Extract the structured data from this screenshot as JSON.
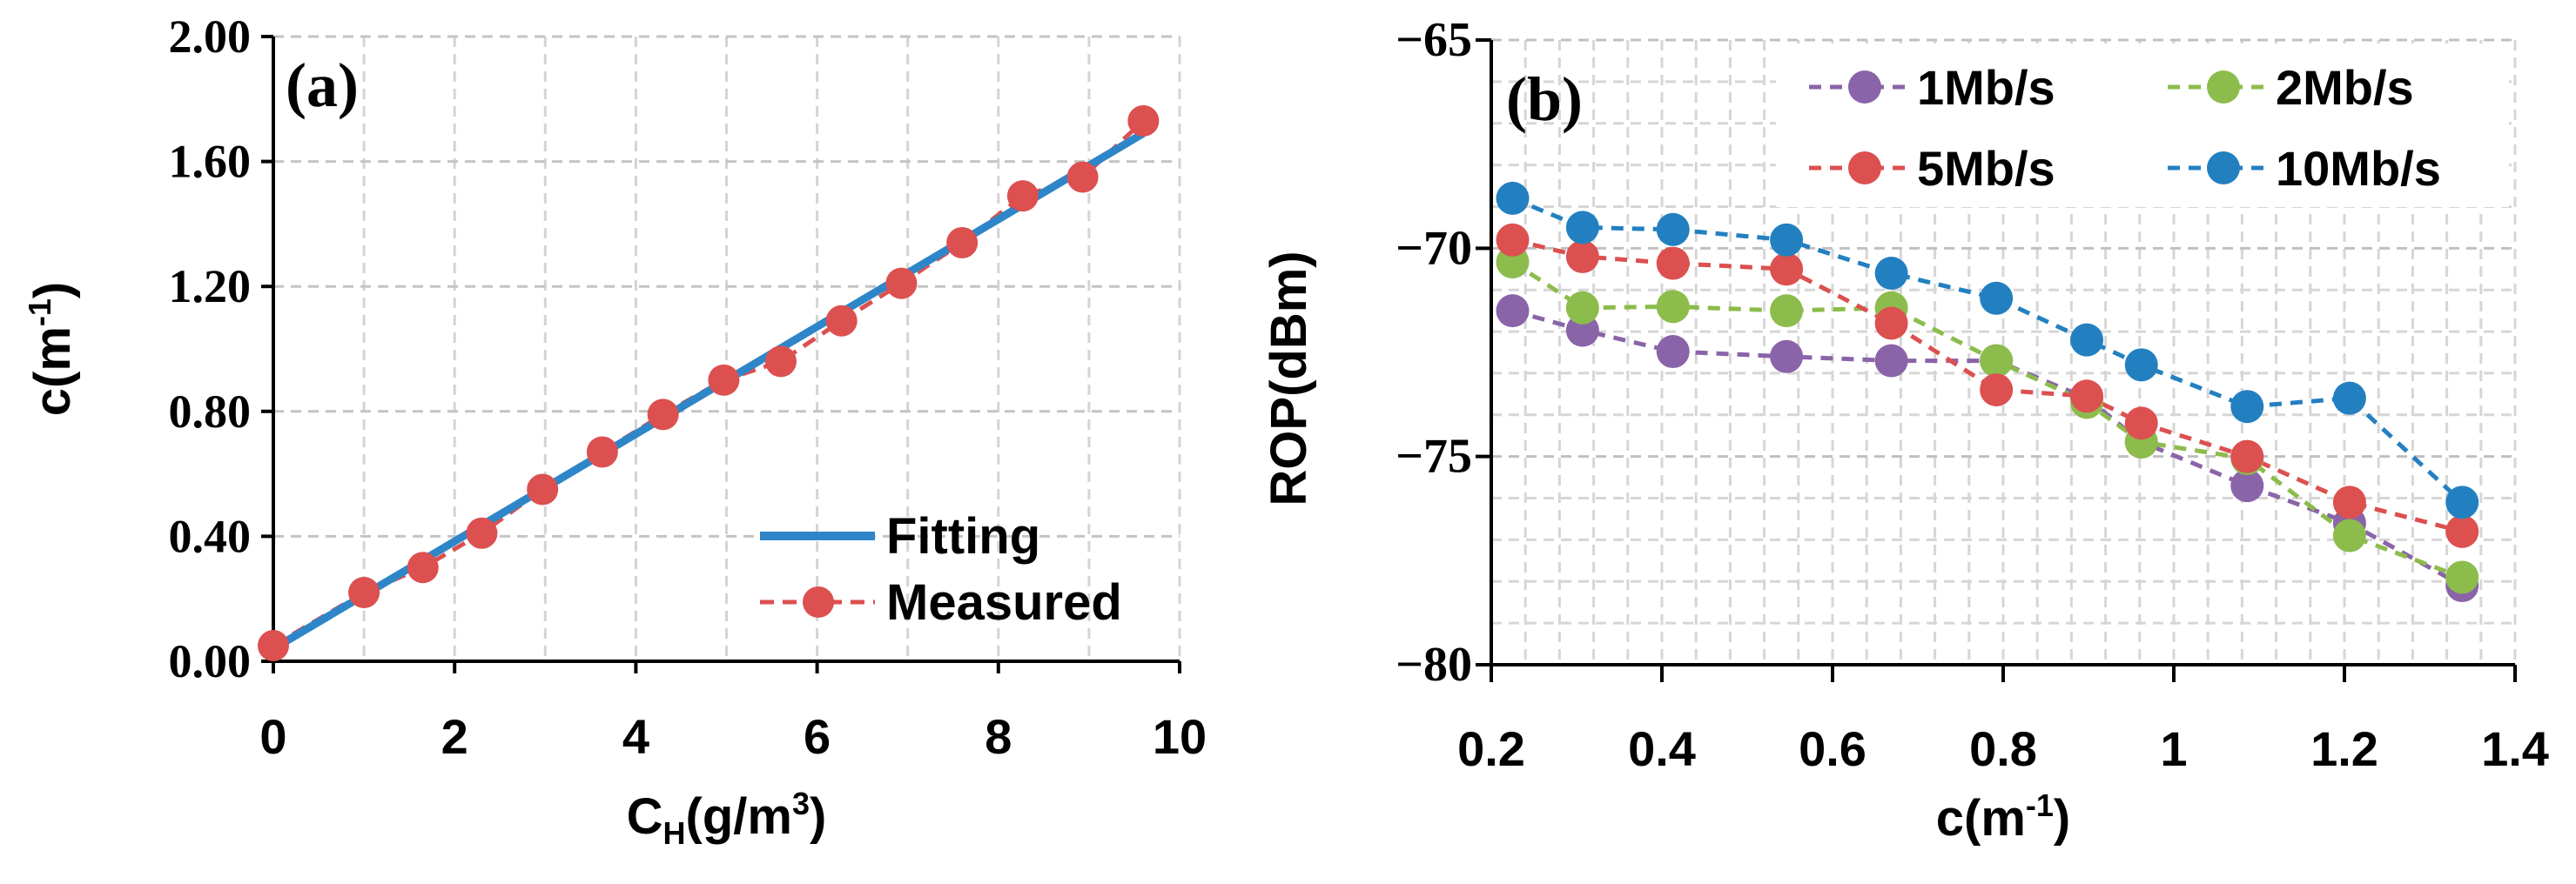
{
  "chart_data": [
    {
      "type": "line",
      "panel_label": "(a)",
      "xlabel": "C",
      "xlabel_sub": "H",
      "xlabel_rest": "(g/m",
      "xlabel_sup": "3",
      "xlabel_end": ")",
      "ylabel": "c(m",
      "ylabel_sup": "-1",
      "ylabel_end": ")",
      "xlim": [
        0,
        10
      ],
      "ylim": [
        0,
        2
      ],
      "xticks": [
        0,
        2,
        4,
        6,
        8,
        10
      ],
      "xtick_labels": [
        "0",
        "2",
        "4",
        "6",
        "8",
        "10"
      ],
      "yticks": [
        0,
        0.4,
        0.8,
        1.2,
        1.6,
        2.0
      ],
      "ytick_labels": [
        "0.00",
        "0.40",
        "0.80",
        "1.20",
        "1.60",
        "2.00"
      ],
      "grid": true,
      "legend_position": "bottom-right",
      "series": [
        {
          "name": "Fitting",
          "style": "solid",
          "color": "#2e86c8",
          "x": [
            0,
            9.6
          ],
          "y": [
            0.04,
            1.69
          ]
        },
        {
          "name": "Measured",
          "style": "dashed-marker",
          "color": "#dc5050",
          "x": [
            0,
            1,
            1.65,
            2.3,
            2.97,
            3.63,
            4.3,
            4.97,
            5.6,
            6.27,
            6.93,
            7.6,
            8.27,
            8.93,
            9.6
          ],
          "y": [
            0.05,
            0.22,
            0.3,
            0.41,
            0.55,
            0.67,
            0.79,
            0.9,
            0.96,
            1.09,
            1.21,
            1.34,
            1.49,
            1.55,
            1.73
          ]
        }
      ]
    },
    {
      "type": "line",
      "panel_label": "(b)",
      "xlabel": "c(m",
      "xlabel_sup": "-1",
      "xlabel_end": ")",
      "ylabel": "ROP(dBm)",
      "xlim": [
        0.2,
        1.4
      ],
      "ylim": [
        -80,
        -65
      ],
      "xticks": [
        0.2,
        0.4,
        0.6,
        0.8,
        1.0,
        1.2,
        1.4
      ],
      "xtick_labels": [
        "0.2",
        "0.4",
        "0.6",
        "0.8",
        "1",
        "1.2",
        "1.4"
      ],
      "yticks": [
        -80,
        -75,
        -70,
        -65
      ],
      "ytick_labels": [
        "−80",
        "−75",
        "−70",
        "−65"
      ],
      "grid": true,
      "legend_position": "top-right",
      "x": [
        0.225,
        0.307,
        0.413,
        0.546,
        0.669,
        0.792,
        0.898,
        0.962,
        1.086,
        1.206,
        1.338
      ],
      "series": [
        {
          "name": "1Mb/s",
          "color": "#8a64a8",
          "y": [
            -71.5,
            -71.97,
            -72.48,
            -72.6,
            -72.7,
            -72.7,
            -73.6,
            -74.65,
            -75.7,
            -76.6,
            -78.1
          ]
        },
        {
          "name": "2Mb/s",
          "color": "#8cbc4c",
          "y": [
            -70.33,
            -71.43,
            -71.4,
            -71.5,
            -71.43,
            -72.7,
            -73.7,
            -74.65,
            -75.05,
            -76.9,
            -77.9
          ]
        },
        {
          "name": "5Mb/s",
          "color": "#dc5050",
          "y": [
            -69.8,
            -70.2,
            -70.36,
            -70.5,
            -71.8,
            -73.4,
            -73.55,
            -74.2,
            -75.0,
            -76.1,
            -76.8
          ]
        },
        {
          "name": "10Mb/s",
          "color": "#2380c0",
          "y": [
            -68.8,
            -69.5,
            -69.55,
            -69.8,
            -70.6,
            -71.2,
            -72.2,
            -72.8,
            -73.8,
            -73.6,
            -76.1
          ]
        }
      ]
    }
  ]
}
